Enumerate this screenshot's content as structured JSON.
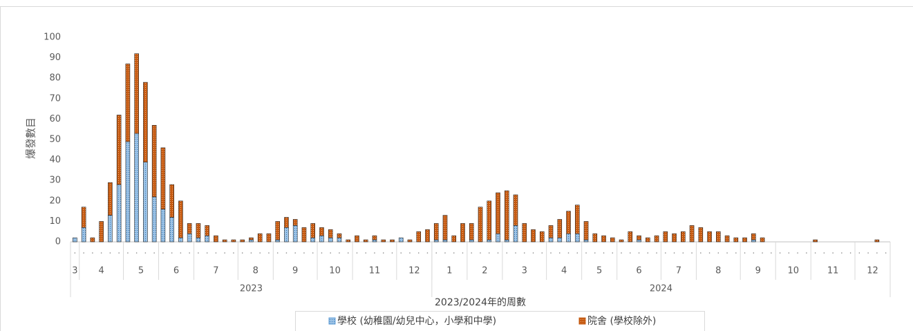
{
  "chart_data": {
    "type": "stacked-bar",
    "y_label": "爆發數目",
    "x_label": "2023/2024年的周數",
    "ylim": [
      0,
      100
    ],
    "yticks": [
      0,
      10,
      20,
      30,
      40,
      50,
      60,
      70,
      80,
      90,
      100
    ],
    "categories": [
      "3",
      "4",
      "4",
      "4",
      "4",
      "4",
      "5",
      "5",
      "5",
      "5",
      "6",
      "6",
      "6",
      "6",
      "7",
      "7",
      "7",
      "7",
      "7",
      "8",
      "8",
      "8",
      "8",
      "9",
      "9",
      "9",
      "9",
      "9",
      "10",
      "10",
      "10",
      "10",
      "11",
      "11",
      "11",
      "11",
      "11",
      "12",
      "12",
      "12",
      "12",
      "1",
      "1",
      "1",
      "1",
      "2",
      "2",
      "2",
      "2",
      "3",
      "3",
      "3",
      "3",
      "3",
      "4",
      "4",
      "4",
      "4",
      "5",
      "5",
      "5",
      "5",
      "6",
      "6",
      "6",
      "6",
      "6",
      "7",
      "7",
      "7",
      "7",
      "8",
      "8",
      "8",
      "8",
      "8",
      "9",
      "9",
      "9",
      "9",
      "10",
      "10",
      "10",
      "10",
      "11",
      "11",
      "11",
      "11",
      "11",
      "12",
      "12",
      "12",
      "12"
    ],
    "years": [
      "2023",
      "2023",
      "2023",
      "2023",
      "2023",
      "2023",
      "2023",
      "2023",
      "2023",
      "2023",
      "2023",
      "2023",
      "2023",
      "2023",
      "2023",
      "2023",
      "2023",
      "2023",
      "2023",
      "2023",
      "2023",
      "2023",
      "2023",
      "2023",
      "2023",
      "2023",
      "2023",
      "2023",
      "2023",
      "2023",
      "2023",
      "2023",
      "2023",
      "2023",
      "2023",
      "2023",
      "2023",
      "2023",
      "2023",
      "2023",
      "2023",
      "2024",
      "2024",
      "2024",
      "2024",
      "2024",
      "2024",
      "2024",
      "2024",
      "2024",
      "2024",
      "2024",
      "2024",
      "2024",
      "2024",
      "2024",
      "2024",
      "2024",
      "2024",
      "2024",
      "2024",
      "2024",
      "2024",
      "2024",
      "2024",
      "2024",
      "2024",
      "2024",
      "2024",
      "2024",
      "2024",
      "2024",
      "2024",
      "2024",
      "2024",
      "2024",
      "2024",
      "2024",
      "2024",
      "2024",
      "2024",
      "2024",
      "2024",
      "2024",
      "2024",
      "2024",
      "2024",
      "2024",
      "2024",
      "2024",
      "2024",
      "2024",
      "2024"
    ],
    "series": [
      {
        "name": "學校 (幼稚園/幼兒中心，小學和中學)",
        "color": "#5b9bd5",
        "values": [
          2,
          7,
          0,
          0,
          13,
          28,
          49,
          53,
          39,
          22,
          16,
          12,
          2,
          4,
          2,
          3,
          0,
          0,
          0,
          0,
          1,
          0,
          0,
          1,
          7,
          8,
          0,
          2,
          3,
          2,
          2,
          0,
          0,
          0,
          1,
          0,
          0,
          2,
          0,
          0,
          0,
          1,
          1,
          0,
          0,
          1,
          0,
          1,
          4,
          1,
          8,
          0,
          0,
          0,
          2,
          2,
          4,
          4,
          1,
          0,
          0,
          0,
          0,
          0,
          1,
          0,
          0,
          0,
          0,
          0,
          0,
          0,
          0,
          0,
          0,
          0,
          0,
          1,
          0,
          0,
          0,
          0,
          0,
          0,
          0,
          0,
          0,
          0,
          0,
          0,
          0,
          0,
          0
        ]
      },
      {
        "name": "院舍 (學校除外)",
        "color": "#c55a11",
        "values": [
          0,
          10,
          2,
          10,
          16,
          34,
          38,
          39,
          39,
          35,
          30,
          16,
          18,
          5,
          7,
          5,
          3,
          1,
          1,
          1,
          1,
          4,
          4,
          9,
          5,
          3,
          7,
          7,
          4,
          4,
          2,
          1,
          3,
          1,
          2,
          1,
          1,
          0,
          1,
          5,
          6,
          8,
          12,
          3,
          9,
          8,
          17,
          19,
          20,
          24,
          15,
          9,
          6,
          5,
          6,
          9,
          11,
          14,
          9,
          4,
          3,
          2,
          1,
          5,
          2,
          2,
          3,
          5,
          4,
          5,
          8,
          7,
          5,
          5,
          3,
          2,
          2,
          3,
          2,
          0,
          0,
          0,
          0,
          0,
          1,
          0,
          0,
          0,
          0,
          0,
          0,
          1,
          0
        ]
      }
    ]
  }
}
